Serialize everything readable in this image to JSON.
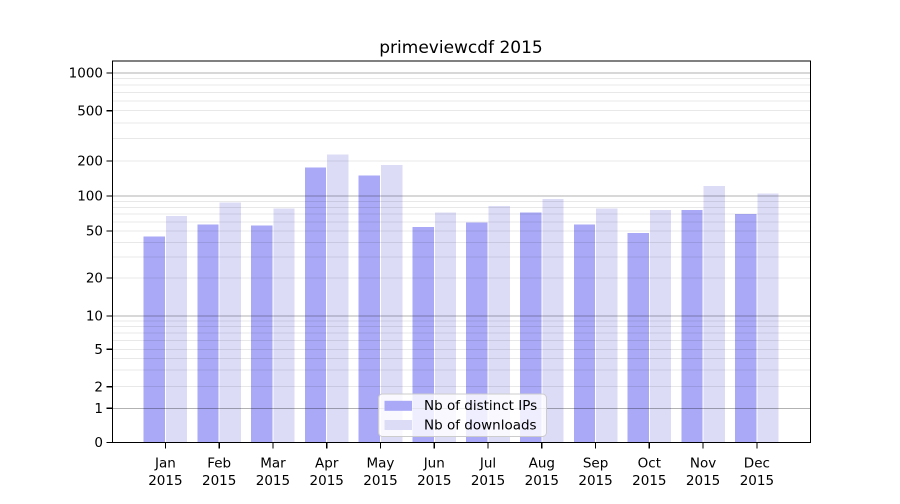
{
  "chart_data": {
    "type": "bar",
    "title": "primeviewcdf 2015",
    "months": [
      "Jan",
      "Feb",
      "Mar",
      "Apr",
      "May",
      "Jun",
      "Jul",
      "Aug",
      "Sep",
      "Oct",
      "Nov",
      "Dec"
    ],
    "year_label": "2015",
    "categories": [
      "Jan 2015",
      "Feb 2015",
      "Mar 2015",
      "Apr 2015",
      "May 2015",
      "Jun 2015",
      "Jul 2015",
      "Aug 2015",
      "Sep 2015",
      "Oct 2015",
      "Nov 2015",
      "Dec 2015"
    ],
    "series": [
      {
        "name": "Nb of distinct IPs",
        "color": "#a9a9f7",
        "values": [
          45,
          57,
          56,
          175,
          150,
          54,
          59,
          72,
          57,
          48,
          76,
          70
        ]
      },
      {
        "name": "Nb of downloads",
        "color": "#dcdcf7",
        "values": [
          67,
          88,
          78,
          225,
          185,
          72,
          82,
          94,
          78,
          76,
          122,
          105
        ]
      }
    ],
    "yticks": [
      0,
      1,
      2,
      5,
      10,
      20,
      50,
      100,
      200,
      500,
      1000
    ],
    "ytick_labels": [
      "0",
      "1",
      "2",
      "5",
      "10",
      "20",
      "50",
      "100",
      "200",
      "500",
      "1000"
    ],
    "yscale": "symlog",
    "ylim": [
      0,
      1300
    ],
    "xlabel": "",
    "ylabel": "",
    "grid": true,
    "legend_position": "lower center"
  }
}
